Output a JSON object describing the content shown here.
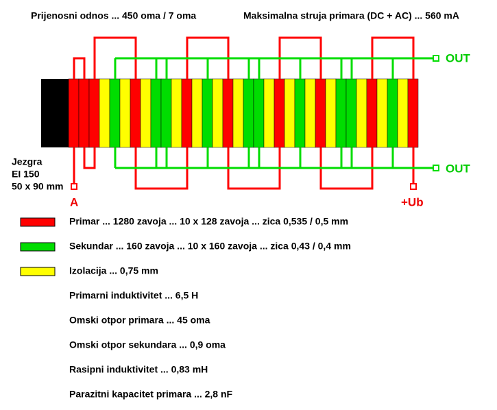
{
  "header": {
    "left": "Prijenosni odnos ... 450 oma / 7 oma",
    "right": "Maksimalna struja primara (DC + AC) ... 560 mA"
  },
  "core": {
    "lines": [
      "Jezgra",
      "EI 150",
      "50 x 90 mm"
    ]
  },
  "terminals": {
    "a": "A",
    "ub": "+Ub",
    "out_top": "OUT",
    "out_bottom": "OUT"
  },
  "legend": [
    {
      "label": "Primar ... 1280 zavoja ... 10 x 128 zavoja ... zica 0,535 / 0,5 mm",
      "color": "#ff0000"
    },
    {
      "label": "Sekundar ... 160 zavoja ... 10 x 160 zavoja ... zica 0,43 / 0,4 mm",
      "color": "#00dd00"
    },
    {
      "label": "Izolacija ... 0,75 mm",
      "color": "#ffff00"
    }
  ],
  "specs": [
    "Primarni induktivitet ... 6,5 H",
    "Omski otpor primara ... 45 oma",
    "Omski otpor sekundara ... 0,9 oma",
    "Rasipni induktivitet ... 0,83 mH",
    "Parazitni kapacitet primara ... 2,8 nF"
  ]
}
